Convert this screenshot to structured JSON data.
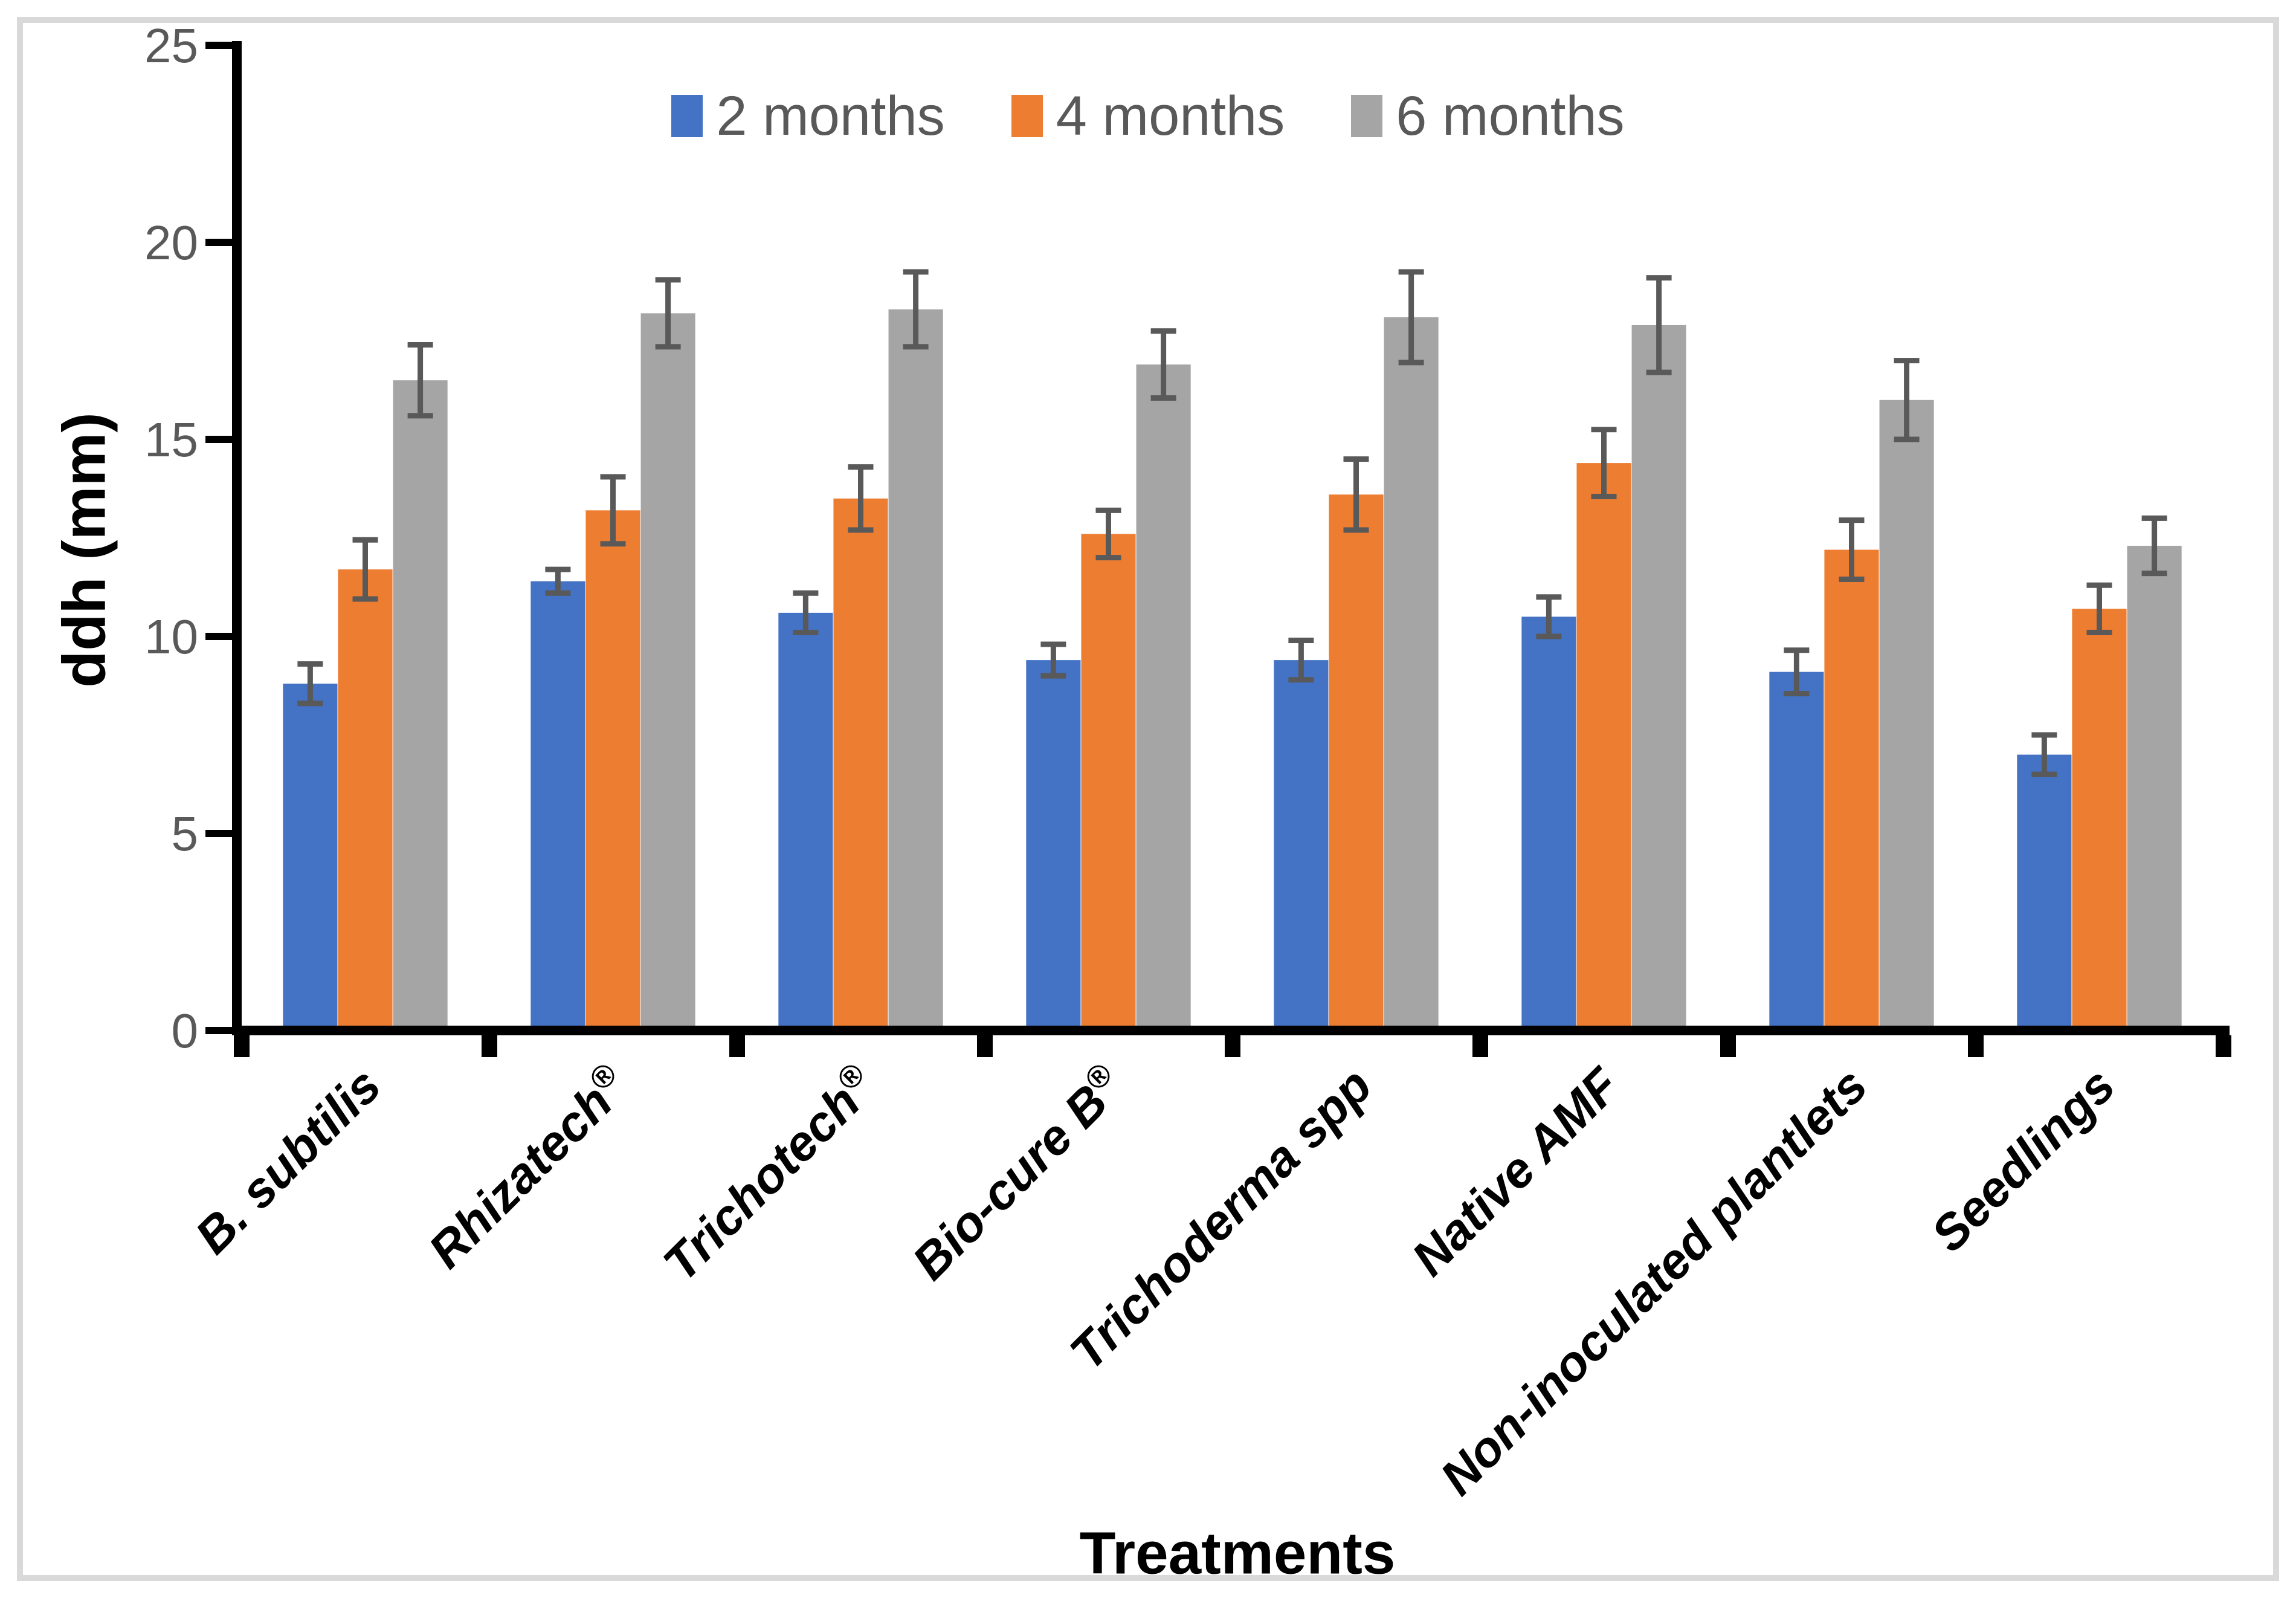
{
  "frame": {
    "border_color": "#d9d9d9"
  },
  "colors": {
    "axis": "#000000",
    "tick_label": "#595959",
    "legend_text": "#595959",
    "error_bar": "#595959"
  },
  "chart_data": {
    "type": "bar",
    "title": "",
    "xlabel": "Treatments",
    "ylabel": "ddh (mm)",
    "ylim": [
      0,
      25
    ],
    "yticks": [
      0,
      5,
      10,
      15,
      20,
      25
    ],
    "grid": false,
    "legend_position": "top-center",
    "categories": [
      "B. subtilis",
      "Rhizatech®",
      "Trichotech®",
      "Bio-cure B®",
      "Trichoderma spp",
      "Native AMF",
      "Non-inoculated plantlets",
      "Seedlings"
    ],
    "series": [
      {
        "name": "2 months",
        "color": "#4472C4",
        "values": [
          8.8,
          11.4,
          10.6,
          9.4,
          9.4,
          10.5,
          9.1,
          7.0
        ],
        "errors": [
          0.5,
          0.3,
          0.5,
          0.4,
          0.5,
          0.5,
          0.55,
          0.5
        ]
      },
      {
        "name": "4 months",
        "color": "#ED7D31",
        "values": [
          11.7,
          13.2,
          13.5,
          12.6,
          13.6,
          14.4,
          12.2,
          10.7
        ],
        "errors": [
          0.75,
          0.85,
          0.8,
          0.6,
          0.9,
          0.85,
          0.75,
          0.6
        ]
      },
      {
        "name": "6 months",
        "color": "#A5A5A5",
        "values": [
          16.5,
          18.2,
          18.3,
          16.9,
          18.1,
          17.9,
          16.0,
          12.3
        ],
        "errors": [
          0.9,
          0.85,
          0.95,
          0.85,
          1.15,
          1.2,
          1.0,
          0.7
        ]
      }
    ]
  }
}
